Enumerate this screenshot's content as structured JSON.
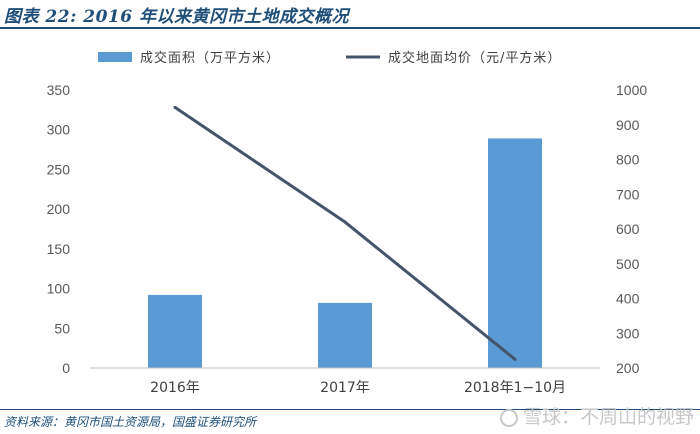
{
  "title": "图表 22:  2016 年以来黄冈市土地成交概况",
  "source": "资料来源：黄冈市国土资源局，国盛证券研究所",
  "watermark": "雪球：不周山的视野",
  "colors": {
    "bar": "#5B9BD5",
    "line": "#44546A",
    "brand": "#1F4E79"
  },
  "chart_data": {
    "type": "bar",
    "categories": [
      "2016年",
      "2017年",
      "2018年1−10月"
    ],
    "series": [
      {
        "name": "成交面积（万平方米）",
        "type": "bar",
        "axis": "left",
        "values": [
          92,
          82,
          289
        ]
      },
      {
        "name": "成交地面均价（元/平方米）",
        "type": "line",
        "axis": "right",
        "values": [
          950,
          620,
          225
        ]
      }
    ],
    "left_axis": {
      "ylim": [
        0,
        350
      ],
      "ticks": [
        0,
        50,
        100,
        150,
        200,
        250,
        300,
        350
      ]
    },
    "right_axis": {
      "ylim": [
        200,
        1000
      ],
      "ticks": [
        200,
        300,
        400,
        500,
        600,
        700,
        800,
        900,
        1000
      ]
    },
    "grid": false,
    "legend_position": "top"
  }
}
